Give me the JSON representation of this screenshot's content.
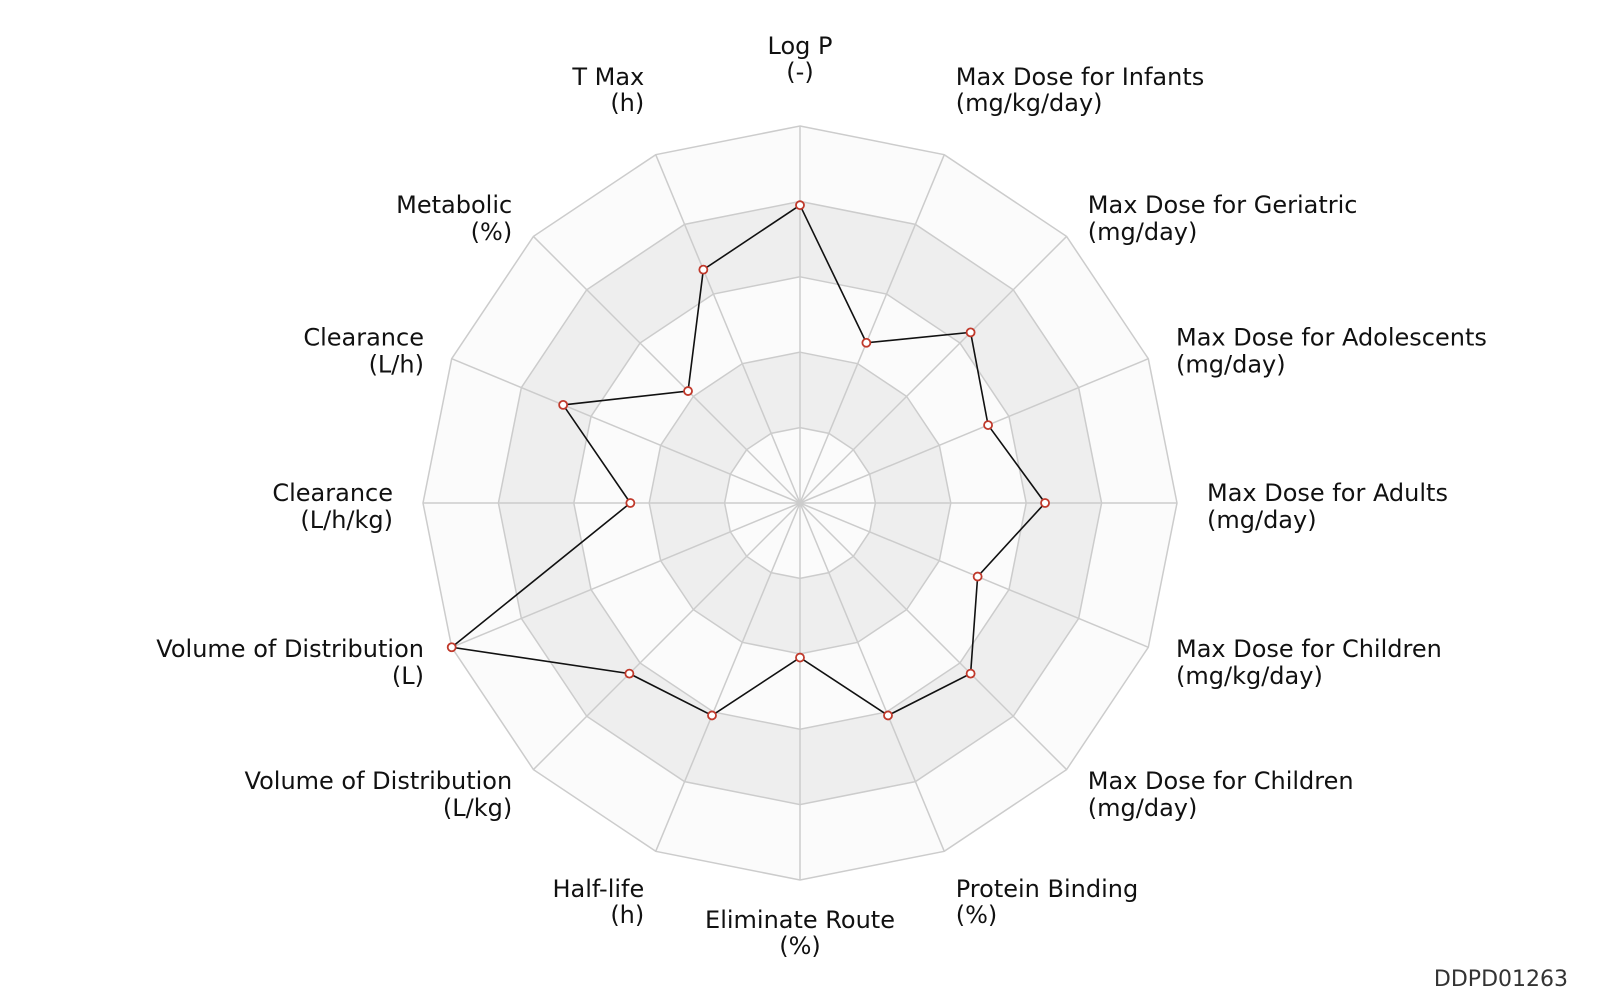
{
  "chart_data": {
    "type": "radar",
    "identifier": "DDPD01263",
    "axes": [
      {
        "label": "Log P",
        "unit": "(-)"
      },
      {
        "label": "Max Dose for Infants",
        "unit": "(mg/kg/day)"
      },
      {
        "label": "Max Dose for Geriatric",
        "unit": "(mg/day)"
      },
      {
        "label": "Max Dose for Adolescents",
        "unit": "(mg/day)"
      },
      {
        "label": "Max Dose for Adults",
        "unit": "(mg/day)"
      },
      {
        "label": "Max Dose for Children",
        "unit": "(mg/kg/day)"
      },
      {
        "label": "Max Dose for Children",
        "unit": "(mg/day)"
      },
      {
        "label": "Protein Binding",
        "unit": "(%)"
      },
      {
        "label": "Eliminate Route",
        "unit": "(%)"
      },
      {
        "label": "Half-life",
        "unit": "(h)"
      },
      {
        "label": "Volume of Distribution",
        "unit": "(L/kg)"
      },
      {
        "label": "Volume of Distribution",
        "unit": "(L)"
      },
      {
        "label": "Clearance",
        "unit": "(L/h/kg)"
      },
      {
        "label": "Clearance",
        "unit": "(L/h)"
      },
      {
        "label": "Metabolic",
        "unit": "(%)"
      },
      {
        "label": "T Max",
        "unit": "(h)"
      }
    ],
    "series": [
      {
        "values": [
          0.79,
          0.46,
          0.64,
          0.54,
          0.65,
          0.51,
          0.64,
          0.61,
          0.41,
          0.61,
          0.64,
          1.0,
          0.45,
          0.68,
          0.42,
          0.67
        ]
      }
    ],
    "rlim": [
      0,
      1
    ],
    "rings": 5,
    "grid": true,
    "legend": "none",
    "colors": {
      "line": "#111111",
      "marker_edge": "#c0392b",
      "marker_face": "#ffffff",
      "band_dark": "#eeeeee",
      "band_light": "#fbfbfb",
      "grid": "#cccccc"
    }
  }
}
